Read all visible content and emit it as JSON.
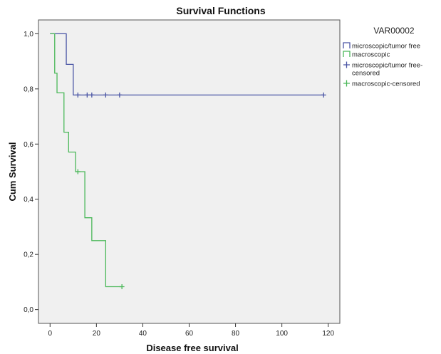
{
  "chart_data": {
    "type": "line",
    "title": "Survival Functions",
    "xlabel": "Disease free survival",
    "ylabel": "Cum Survival",
    "xlim": [
      -5,
      125
    ],
    "ylim": [
      -0.05,
      1.05
    ],
    "xticks": [
      0,
      20,
      40,
      60,
      80,
      100,
      120
    ],
    "yticks": [
      "0,0",
      "0,2",
      "0,4",
      "0,6",
      "0,8",
      "1,0"
    ],
    "ytick_values": [
      0,
      0.2,
      0.4,
      0.6,
      0.8,
      1.0
    ],
    "grid": false,
    "legend_title": "VAR00002",
    "legend_position": "right-outside",
    "series": [
      {
        "name": "microscopic/tumor free",
        "color": "#4a55a5",
        "steps": [
          [
            0,
            1.0
          ],
          [
            7,
            0.889
          ],
          [
            10,
            0.778
          ],
          [
            118,
            0.778
          ]
        ]
      },
      {
        "name": "macroscopic",
        "color": "#4cb85a",
        "steps": [
          [
            0,
            1.0
          ],
          [
            2,
            0.857
          ],
          [
            3,
            0.786
          ],
          [
            6,
            0.643
          ],
          [
            8,
            0.571
          ],
          [
            11,
            0.5
          ],
          [
            15,
            0.333
          ],
          [
            18,
            0.25
          ],
          [
            24,
            0.083
          ],
          [
            31,
            0.083
          ]
        ]
      }
    ],
    "censored": [
      {
        "name": "microscopic/tumor free-censored",
        "color": "#4a55a5",
        "points": [
          [
            12,
            0.778
          ],
          [
            16,
            0.778
          ],
          [
            18,
            0.778
          ],
          [
            24,
            0.778
          ],
          [
            30,
            0.778
          ],
          [
            118,
            0.778
          ]
        ]
      },
      {
        "name": "macroscopic-censored",
        "color": "#4cb85a",
        "points": [
          [
            12,
            0.5
          ],
          [
            31,
            0.083
          ]
        ]
      }
    ],
    "legend_entries": [
      {
        "label": "microscopic/tumor free",
        "kind": "line",
        "color": "#4a55a5"
      },
      {
        "label": "macroscopic",
        "kind": "line",
        "color": "#4cb85a"
      },
      {
        "label": "microscopic/tumor free-\ncensored",
        "kind": "cross",
        "color": "#4a55a5"
      },
      {
        "label": "macroscopic-censored",
        "kind": "cross",
        "color": "#4cb85a"
      }
    ]
  }
}
